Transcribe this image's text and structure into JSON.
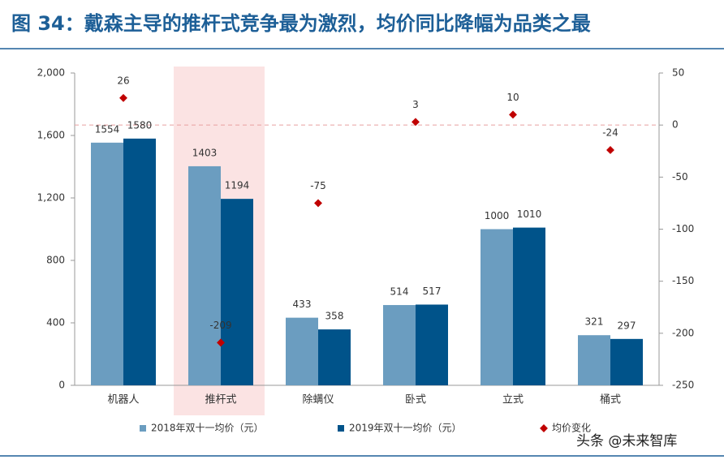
{
  "chart_data": {
    "type": "bar",
    "title": "图 34：戴森主导的推杆式竞争最为激烈，均价同比降幅为品类之最",
    "categories": [
      "机器人",
      "推杆式",
      "除螨仪",
      "卧式",
      "立式",
      "桶式"
    ],
    "series": [
      {
        "name": "2018年双十一均价（元）",
        "color": "#6b9dc0",
        "values": [
          1554,
          1403,
          433,
          514,
          1000,
          321
        ]
      },
      {
        "name": "2019年双十一均价（元）",
        "color": "#00538a",
        "values": [
          1580,
          1194,
          358,
          517,
          1010,
          297
        ]
      },
      {
        "name": "均价变化",
        "color": "#c00000",
        "axis": "y2",
        "type": "scatter",
        "values": [
          26,
          -209,
          -75,
          3,
          10,
          -24
        ]
      }
    ],
    "ylim": [
      0,
      2000
    ],
    "yticks": [
      0,
      400,
      800,
      {
        "value": 1200,
        "label": "1,200"
      },
      {
        "value": 1600,
        "label": "1,600"
      },
      {
        "value": 2000,
        "label": "2,000"
      }
    ],
    "y2lim": [
      -250,
      50
    ],
    "y2ticks": [
      -250,
      -200,
      -150,
      -100,
      -50,
      0,
      50
    ],
    "legend": "bottom",
    "watermark": "头条 @未来智库"
  }
}
